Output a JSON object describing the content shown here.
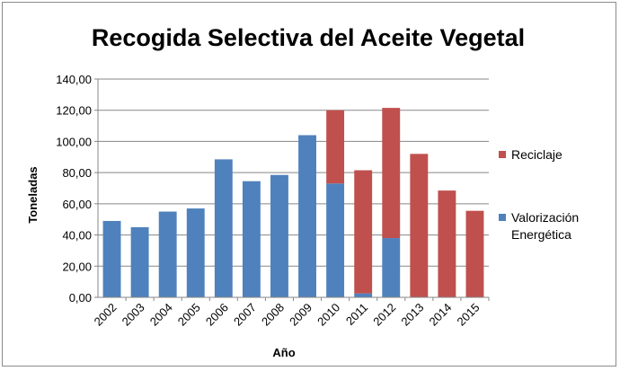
{
  "chart_data": {
    "type": "bar",
    "stacked": true,
    "title": "Recogida Selectiva del Aceite Vegetal",
    "xlabel": "Año",
    "ylabel": "Toneladas",
    "ylim": [
      0,
      140
    ],
    "yticks": [
      "0,00",
      "20,00",
      "40,00",
      "60,00",
      "80,00",
      "100,00",
      "120,00",
      "140,00"
    ],
    "grid": true,
    "legend_position": "right",
    "categories": [
      "2002",
      "2003",
      "2004",
      "2005",
      "2006",
      "2007",
      "2008",
      "2009",
      "2010",
      "2011",
      "2012",
      "2013",
      "2014",
      "2015"
    ],
    "series": [
      {
        "name": "Valorización Energética",
        "legend_lines": [
          "Valorización",
          "Energética"
        ],
        "color": "#4f81bd",
        "values": [
          49,
          45,
          55,
          57,
          88.5,
          74.5,
          78.5,
          104,
          73,
          2.5,
          38,
          0,
          0,
          0
        ]
      },
      {
        "name": "Reciclaje",
        "legend_lines": [
          "Reciclaje"
        ],
        "color": "#c0504d",
        "values": [
          0,
          0,
          0,
          0,
          0,
          0,
          0,
          0,
          47,
          79,
          83.5,
          92,
          68.5,
          55.5
        ]
      }
    ]
  }
}
